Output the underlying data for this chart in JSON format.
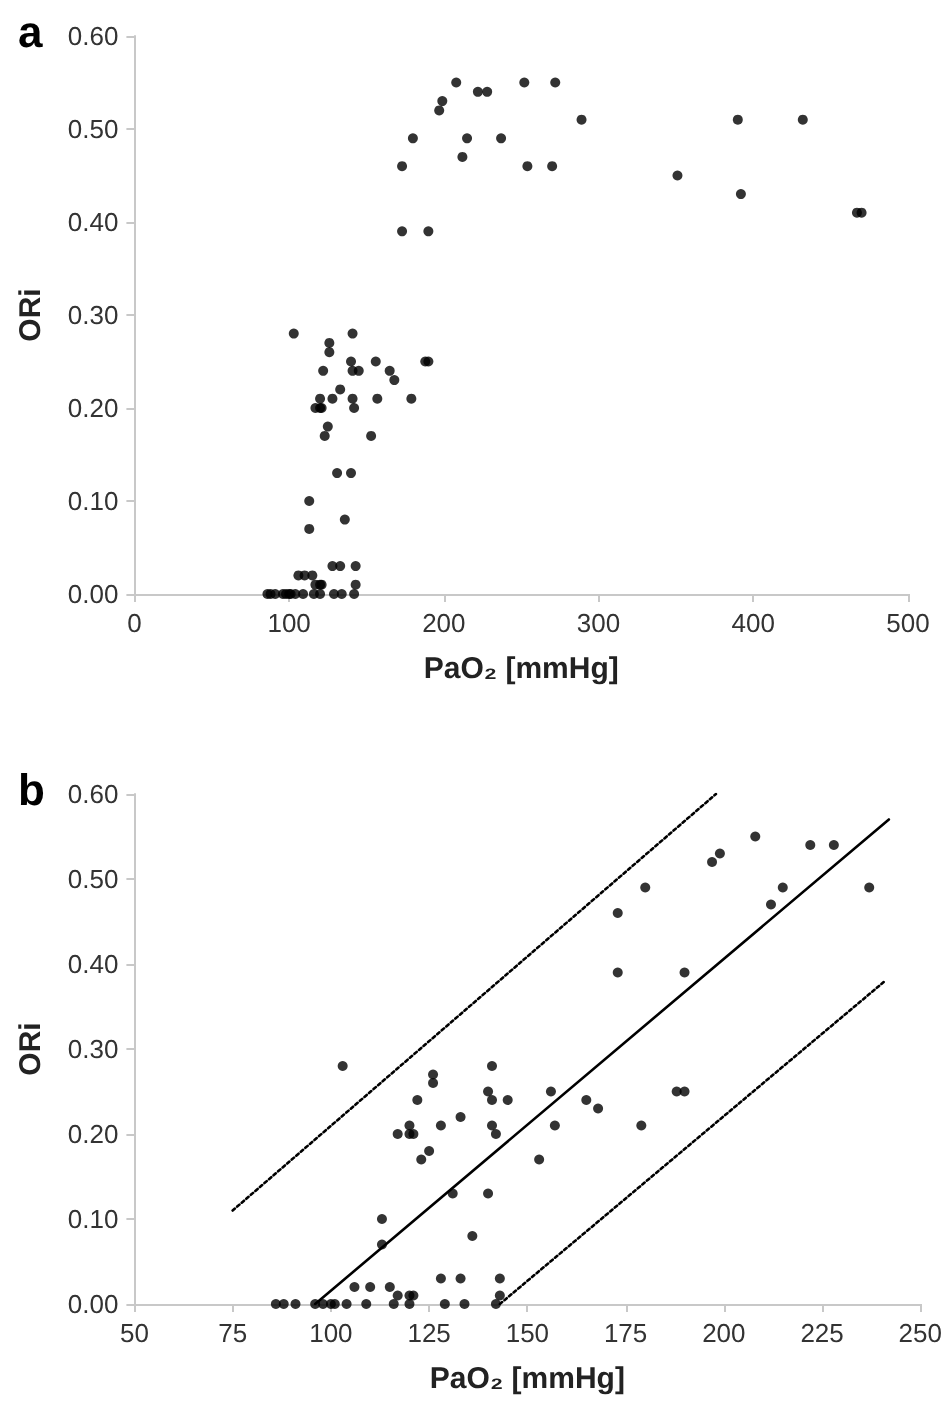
{
  "chart_data": [
    {
      "type": "scatter",
      "title": "a",
      "xlabel": "PaO₂ [mmHg]",
      "ylabel": "ORi",
      "xlim": [
        0,
        500
      ],
      "xticks": [
        0,
        100,
        200,
        300,
        400,
        500
      ],
      "ylim": [
        0,
        0.6
      ],
      "yticks": [
        {
          "value": 0,
          "label": "0.00"
        },
        {
          "value": 0.1,
          "label": "0.10"
        },
        {
          "value": 0.2,
          "label": "0.20"
        },
        {
          "value": 0.3,
          "label": "0.30"
        },
        {
          "value": 0.4,
          "label": "0.40"
        },
        {
          "value": 0.5,
          "label": "0.50"
        },
        {
          "value": 0.6,
          "label": "0.60"
        }
      ],
      "grid": false,
      "series": [
        {
          "color": "#000000",
          "marker": "circle",
          "x": [
            103,
            126,
            126,
            141,
            140,
            141,
            145,
            156,
            122,
            165,
            168,
            188,
            190,
            117,
            120,
            120,
            121,
            128,
            133,
            141,
            142,
            157,
            179,
            123,
            125,
            153,
            131,
            140,
            113,
            113,
            136,
            128,
            133,
            143,
            106,
            110,
            115,
            117,
            120,
            121,
            143,
            86,
            88,
            91,
            96,
            98,
            100,
            101,
            104,
            109,
            116,
            120,
            129,
            134,
            142,
            173,
            173,
            180,
            197,
            199,
            208,
            212,
            215,
            222,
            228,
            237,
            190,
            252,
            272,
            289,
            254,
            270,
            351,
            390,
            432,
            392,
            467,
            470
          ],
          "values": [
            0.28,
            0.27,
            0.26,
            0.28,
            0.25,
            0.24,
            0.24,
            0.25,
            0.24,
            0.24,
            0.23,
            0.25,
            0.25,
            0.2,
            0.21,
            0.2,
            0.2,
            0.21,
            0.22,
            0.21,
            0.2,
            0.21,
            0.21,
            0.17,
            0.18,
            0.17,
            0.13,
            0.13,
            0.1,
            0.07,
            0.08,
            0.03,
            0.03,
            0.03,
            0.02,
            0.02,
            0.02,
            0.01,
            0.01,
            0.01,
            0.01,
            0,
            0,
            0,
            0,
            0,
            0,
            0,
            0,
            0,
            0,
            0,
            0,
            0,
            0,
            0.46,
            0.39,
            0.49,
            0.52,
            0.53,
            0.55,
            0.47,
            0.49,
            0.54,
            0.54,
            0.49,
            0.39,
            0.55,
            0.55,
            0.51,
            0.46,
            0.46,
            0.45,
            0.51,
            0.51,
            0.43,
            0.41,
            0.41
          ]
        }
      ]
    },
    {
      "type": "scatter",
      "title": "b",
      "xlabel": "PaO₂ [mmHg]",
      "ylabel": "ORi",
      "xlim": [
        50,
        250
      ],
      "xticks": [
        50,
        75,
        100,
        125,
        150,
        175,
        200,
        225,
        250
      ],
      "ylim": [
        0,
        0.6
      ],
      "yticks": [
        {
          "value": 0,
          "label": "0.00"
        },
        {
          "value": 0.1,
          "label": "0.10"
        },
        {
          "value": 0.2,
          "label": "0.20"
        },
        {
          "value": 0.3,
          "label": "0.30"
        },
        {
          "value": 0.4,
          "label": "0.40"
        },
        {
          "value": 0.5,
          "label": "0.50"
        },
        {
          "value": 0.6,
          "label": "0.60"
        }
      ],
      "grid": false,
      "series": [
        {
          "color": "#000000",
          "marker": "circle",
          "x": [
            103,
            126,
            126,
            141,
            140,
            141,
            145,
            156,
            122,
            165,
            168,
            188,
            190,
            117,
            120,
            120,
            121,
            128,
            133,
            141,
            142,
            157,
            179,
            123,
            125,
            153,
            131,
            140,
            113,
            113,
            136,
            128,
            133,
            143,
            106,
            110,
            115,
            117,
            120,
            121,
            143,
            86,
            88,
            91,
            96,
            98,
            100,
            101,
            104,
            109,
            116,
            120,
            129,
            134,
            142,
            173,
            173,
            180,
            197,
            199,
            208,
            212,
            215,
            222,
            228,
            237,
            190
          ],
          "values": [
            0.28,
            0.27,
            0.26,
            0.28,
            0.25,
            0.24,
            0.24,
            0.25,
            0.24,
            0.24,
            0.23,
            0.25,
            0.25,
            0.2,
            0.21,
            0.2,
            0.2,
            0.21,
            0.22,
            0.21,
            0.2,
            0.21,
            0.21,
            0.17,
            0.18,
            0.17,
            0.13,
            0.13,
            0.1,
            0.07,
            0.08,
            0.03,
            0.03,
            0.03,
            0.02,
            0.02,
            0.02,
            0.01,
            0.01,
            0.01,
            0.01,
            0,
            0,
            0,
            0,
            0,
            0,
            0,
            0,
            0,
            0,
            0,
            0,
            0,
            0,
            0.46,
            0.39,
            0.49,
            0.52,
            0.53,
            0.55,
            0.47,
            0.49,
            0.54,
            0.54,
            0.49,
            0.39
          ]
        },
        {
          "type": "line",
          "color": "#000000",
          "marker": "none",
          "line_style": "solid",
          "x": [
            96,
            242
          ],
          "values": [
            0,
            0.57
          ]
        },
        {
          "type": "line",
          "color": "#000000",
          "marker": "none",
          "line_style": "dotted",
          "x": [
            75,
            198
          ],
          "values": [
            0.11,
            0.6
          ]
        },
        {
          "type": "line",
          "color": "#000000",
          "marker": "none",
          "line_style": "dotted",
          "x": [
            143,
            241
          ],
          "values": [
            0,
            0.38
          ]
        }
      ]
    }
  ]
}
